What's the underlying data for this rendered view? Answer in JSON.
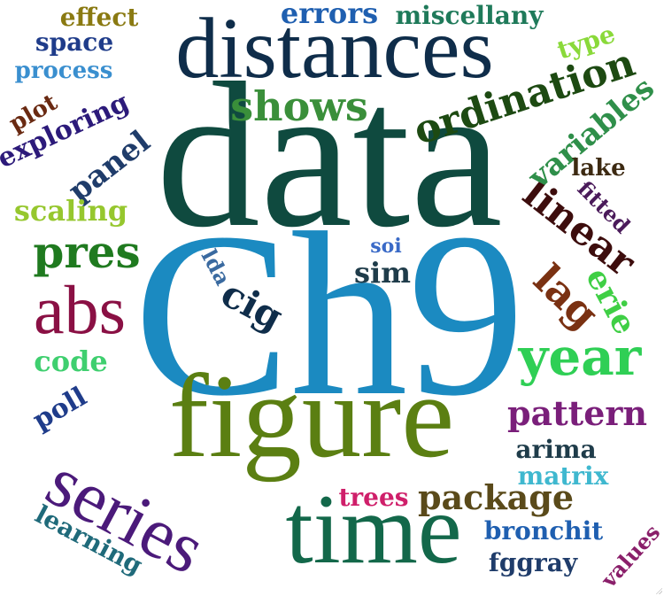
{
  "cloud": {
    "words": [
      {
        "text": "data",
        "color": "#0f4a3f",
        "weight": 10
      },
      {
        "text": "Ch9",
        "color": "#1b8ac1",
        "weight": 10
      },
      {
        "text": "figure",
        "color": "#5b7f12",
        "weight": 8
      },
      {
        "text": "distances",
        "color": "#0f2d4a",
        "weight": 6
      },
      {
        "text": "time",
        "color": "#13684a",
        "weight": 6
      },
      {
        "text": "series",
        "color": "#4b1a7a",
        "weight": 5
      },
      {
        "text": "abs",
        "color": "#8a1044",
        "weight": 5
      },
      {
        "text": "year",
        "color": "#2fcf55",
        "weight": 4
      },
      {
        "text": "pres",
        "color": "#1f7a1f",
        "weight": 3
      },
      {
        "text": "ordination",
        "color": "#1d4a12",
        "weight": 3
      },
      {
        "text": "shows",
        "color": "#3a8f3a",
        "weight": 3
      },
      {
        "text": "linear",
        "color": "#3d0d0d",
        "weight": 3
      },
      {
        "text": "lag",
        "color": "#7a3112",
        "weight": 3
      },
      {
        "text": "pattern",
        "color": "#7a1f7a",
        "weight": 3
      },
      {
        "text": "package",
        "color": "#5a4a1a",
        "weight": 3
      },
      {
        "text": "variables",
        "color": "#2f8f4a",
        "weight": 3
      },
      {
        "text": "erie",
        "color": "#3fcf45",
        "weight": 3
      },
      {
        "text": "cig",
        "color": "#0f2d4a",
        "weight": 2
      },
      {
        "text": "panel",
        "color": "#1f3c6a",
        "weight": 2
      },
      {
        "text": "scaling",
        "color": "#96c72e",
        "weight": 2
      },
      {
        "text": "code",
        "color": "#3fcf6f",
        "weight": 2
      },
      {
        "text": "exploring",
        "color": "#2c1a7a",
        "weight": 2
      },
      {
        "text": "space",
        "color": "#1f3c8a",
        "weight": 2
      },
      {
        "text": "process",
        "color": "#3a8fcf",
        "weight": 2
      },
      {
        "text": "effect",
        "color": "#8a7a12",
        "weight": 2
      },
      {
        "text": "errors",
        "color": "#1f5fb0",
        "weight": 2
      },
      {
        "text": "miscellany",
        "color": "#1f7a5a",
        "weight": 2
      },
      {
        "text": "type",
        "color": "#8ad93a",
        "weight": 2
      },
      {
        "text": "plot",
        "color": "#6a2a12",
        "weight": 2
      },
      {
        "text": "lake",
        "color": "#3d2a12",
        "weight": 2
      },
      {
        "text": "fitted",
        "color": "#4a1a5a",
        "weight": 2
      },
      {
        "text": "poll",
        "color": "#1f3c8a",
        "weight": 2
      },
      {
        "text": "arima",
        "color": "#1f3c4a",
        "weight": 2
      },
      {
        "text": "matrix",
        "color": "#3fb8cf",
        "weight": 2
      },
      {
        "text": "trees",
        "color": "#cf1f6a",
        "weight": 2
      },
      {
        "text": "bronchit",
        "color": "#1f5fb0",
        "weight": 2
      },
      {
        "text": "fggray",
        "color": "#1f3c6a",
        "weight": 2
      },
      {
        "text": "values",
        "color": "#8a1f6a",
        "weight": 1
      },
      {
        "text": "learning",
        "color": "#1f6a7a",
        "weight": 2
      },
      {
        "text": "lda",
        "color": "#3a6aa0",
        "weight": 1
      },
      {
        "text": "soi",
        "color": "#3a6ac7",
        "weight": 1
      },
      {
        "text": "sim",
        "color": "#1f3c4a",
        "weight": 1
      }
    ]
  }
}
